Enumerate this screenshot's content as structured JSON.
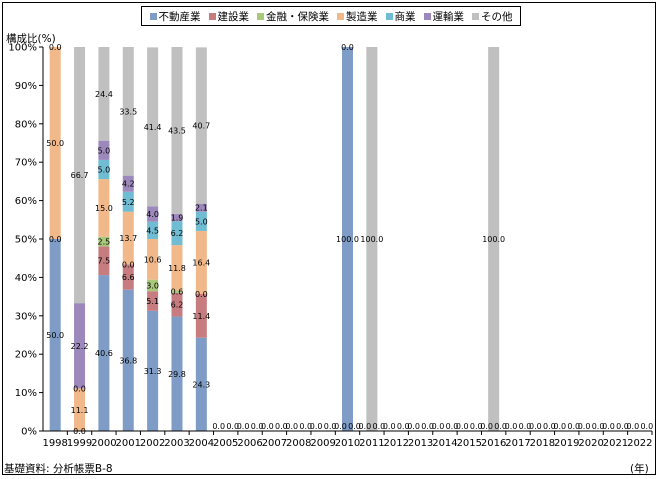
{
  "legend": [
    {
      "label": "不動産業",
      "color": "#7f9cc6"
    },
    {
      "label": "建設業",
      "color": "#c77d80"
    },
    {
      "label": "金融・保険業",
      "color": "#a8c87a"
    },
    {
      "label": "製造業",
      "color": "#f1b88a"
    },
    {
      "label": "商業",
      "color": "#6fbcd3"
    },
    {
      "label": "運輸業",
      "color": "#9d88bb"
    },
    {
      "label": "その他",
      "color": "#c0c0c0"
    }
  ],
  "y_title": "構成比(%)",
  "source_note": "基礎資料: 分析帳票B-8",
  "x_unit": "(年)",
  "chart_data": {
    "type": "bar",
    "stacked": true,
    "ylim": [
      0,
      100
    ],
    "y_ticks": [
      "0%",
      "10%",
      "20%",
      "30%",
      "40%",
      "50%",
      "60%",
      "70%",
      "80%",
      "90%",
      "100%"
    ],
    "grid": false,
    "legend_position": "top-center",
    "categories": [
      "1998",
      "1999",
      "2000",
      "2001",
      "2002",
      "2003",
      "2004",
      "2005",
      "2006",
      "2007",
      "2008",
      "2009",
      "2010",
      "2011",
      "2012",
      "2013",
      "2014",
      "2015",
      "2016",
      "2017",
      "2018",
      "2019",
      "2020",
      "2021",
      "2022"
    ],
    "series": [
      {
        "name": "不動産業",
        "values": [
          50.0,
          0.0,
          40.6,
          36.8,
          31.3,
          29.8,
          24.3,
          0,
          0,
          0,
          0,
          0,
          100.0,
          0,
          0,
          0,
          0,
          0,
          0,
          0,
          0,
          0,
          0,
          0,
          0
        ]
      },
      {
        "name": "建設業",
        "values": [
          0.0,
          0.0,
          7.5,
          6.6,
          5.1,
          6.2,
          11.4,
          0,
          0,
          0,
          0,
          0,
          0,
          0,
          0,
          0,
          0,
          0,
          0,
          0,
          0,
          0,
          0,
          0,
          0
        ]
      },
      {
        "name": "金融・保険業",
        "values": [
          0.0,
          0.0,
          2.5,
          0.0,
          3.0,
          0.6,
          0.0,
          0,
          0,
          0,
          0,
          0,
          0,
          0,
          0,
          0,
          0,
          0,
          0,
          0,
          0,
          0,
          0,
          0,
          0
        ]
      },
      {
        "name": "製造業",
        "values": [
          50.0,
          11.1,
          15.0,
          13.7,
          10.6,
          11.8,
          16.4,
          0,
          0,
          0,
          0,
          0,
          0,
          0,
          0,
          0,
          0,
          0,
          0,
          0,
          0,
          0,
          0,
          0,
          0
        ]
      },
      {
        "name": "商業",
        "values": [
          0.0,
          0.0,
          5.0,
          5.2,
          4.5,
          6.2,
          5.0,
          0,
          0,
          0,
          0,
          0,
          0,
          0,
          0,
          0,
          0,
          0,
          0,
          0,
          0,
          0,
          0,
          0,
          0
        ]
      },
      {
        "name": "運輸業",
        "values": [
          0.0,
          22.2,
          5.0,
          4.2,
          4.0,
          1.9,
          2.1,
          0,
          0,
          0,
          0,
          0,
          0,
          0,
          0,
          0,
          0,
          0,
          0,
          0,
          0,
          0,
          0,
          0,
          0
        ]
      },
      {
        "name": "その他",
        "values": [
          0.0,
          66.7,
          24.4,
          33.5,
          41.4,
          43.5,
          40.7,
          0,
          0,
          0,
          0,
          0,
          0,
          100.0,
          0,
          0,
          0,
          0,
          100.0,
          0,
          0,
          0,
          0,
          0,
          0
        ]
      }
    ],
    "data_labels": [
      {
        "category": "1998",
        "labels": [
          "50.0",
          "0.0",
          "50.0",
          "0.0"
        ]
      },
      {
        "category": "1999",
        "labels": [
          "0.0",
          "0.0",
          "11.1",
          "22.2",
          "66.7"
        ]
      },
      {
        "category": "2000",
        "labels": [
          "40.6",
          "7.5",
          "2.5",
          "15.0",
          "5.0",
          "5.0",
          "24.4"
        ]
      },
      {
        "category": "2001",
        "labels": [
          "36.8",
          "6.6",
          "0.0",
          "13.7",
          "5.2",
          "4.2",
          "33.5"
        ]
      },
      {
        "category": "2002",
        "labels": [
          "31.3",
          "5.1",
          "3.0",
          "10.6",
          "4.5",
          "4.0",
          "41.4"
        ]
      },
      {
        "category": "2003",
        "labels": [
          "29.8",
          "6.2",
          "0.6",
          "11.8",
          "6.2",
          "1.9",
          "43.5"
        ]
      },
      {
        "category": "2004",
        "labels": [
          "24.3",
          "11.4",
          "0.0",
          "16.4",
          "5.0",
          "2.1",
          "40.7"
        ]
      },
      {
        "category": "2010",
        "labels": [
          "100.0",
          "0.0"
        ]
      },
      {
        "category": "2011",
        "labels": [
          "100.0"
        ]
      },
      {
        "category": "2016",
        "labels": [
          "100.0"
        ]
      }
    ],
    "zero_labels": [
      "0.0",
      "0.0"
    ]
  }
}
